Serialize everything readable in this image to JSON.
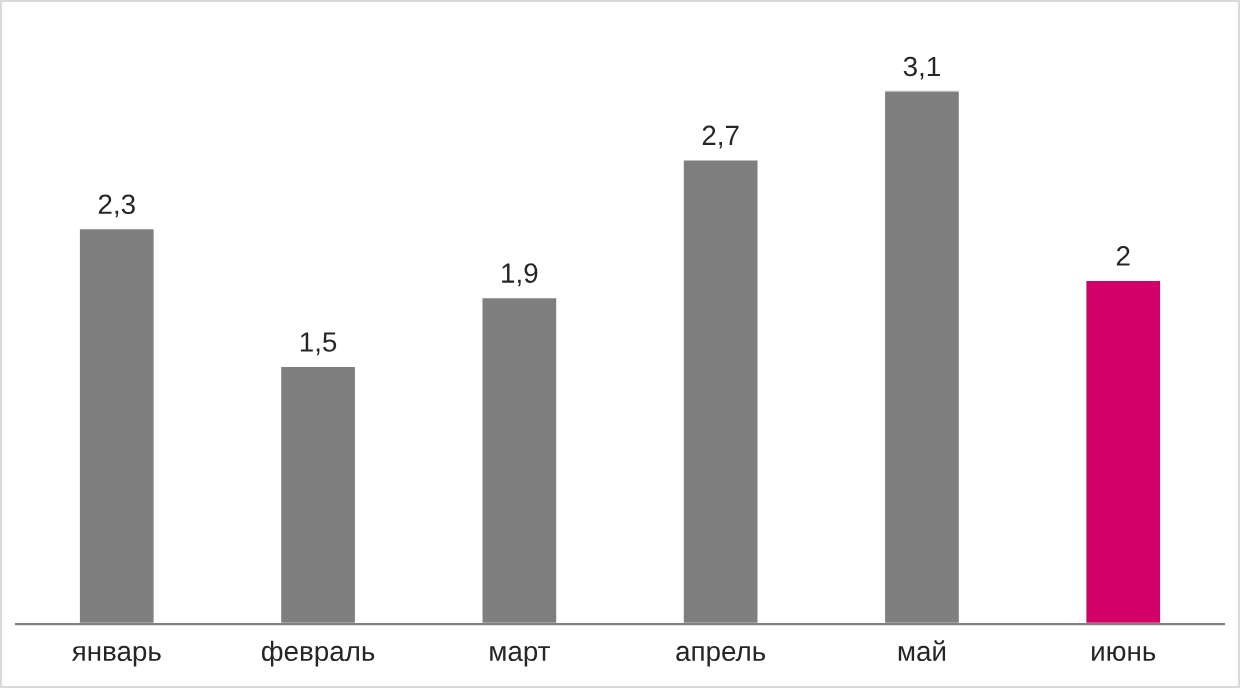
{
  "chart_data": {
    "type": "bar",
    "categories": [
      "январь",
      "февраль",
      "март",
      "апрель",
      "май",
      "июнь"
    ],
    "values": [
      2.3,
      1.5,
      1.9,
      2.7,
      3.1,
      2
    ],
    "colors": [
      "#7f7f7f",
      "#7f7f7f",
      "#7f7f7f",
      "#7f7f7f",
      "#7f7f7f",
      "#d4006a"
    ],
    "value_labels": [
      "2,3",
      "1,5",
      "1,9",
      "2,7",
      "3,1",
      "2"
    ],
    "tick_labels": "x",
    "grid": false,
    "legend": false
  }
}
